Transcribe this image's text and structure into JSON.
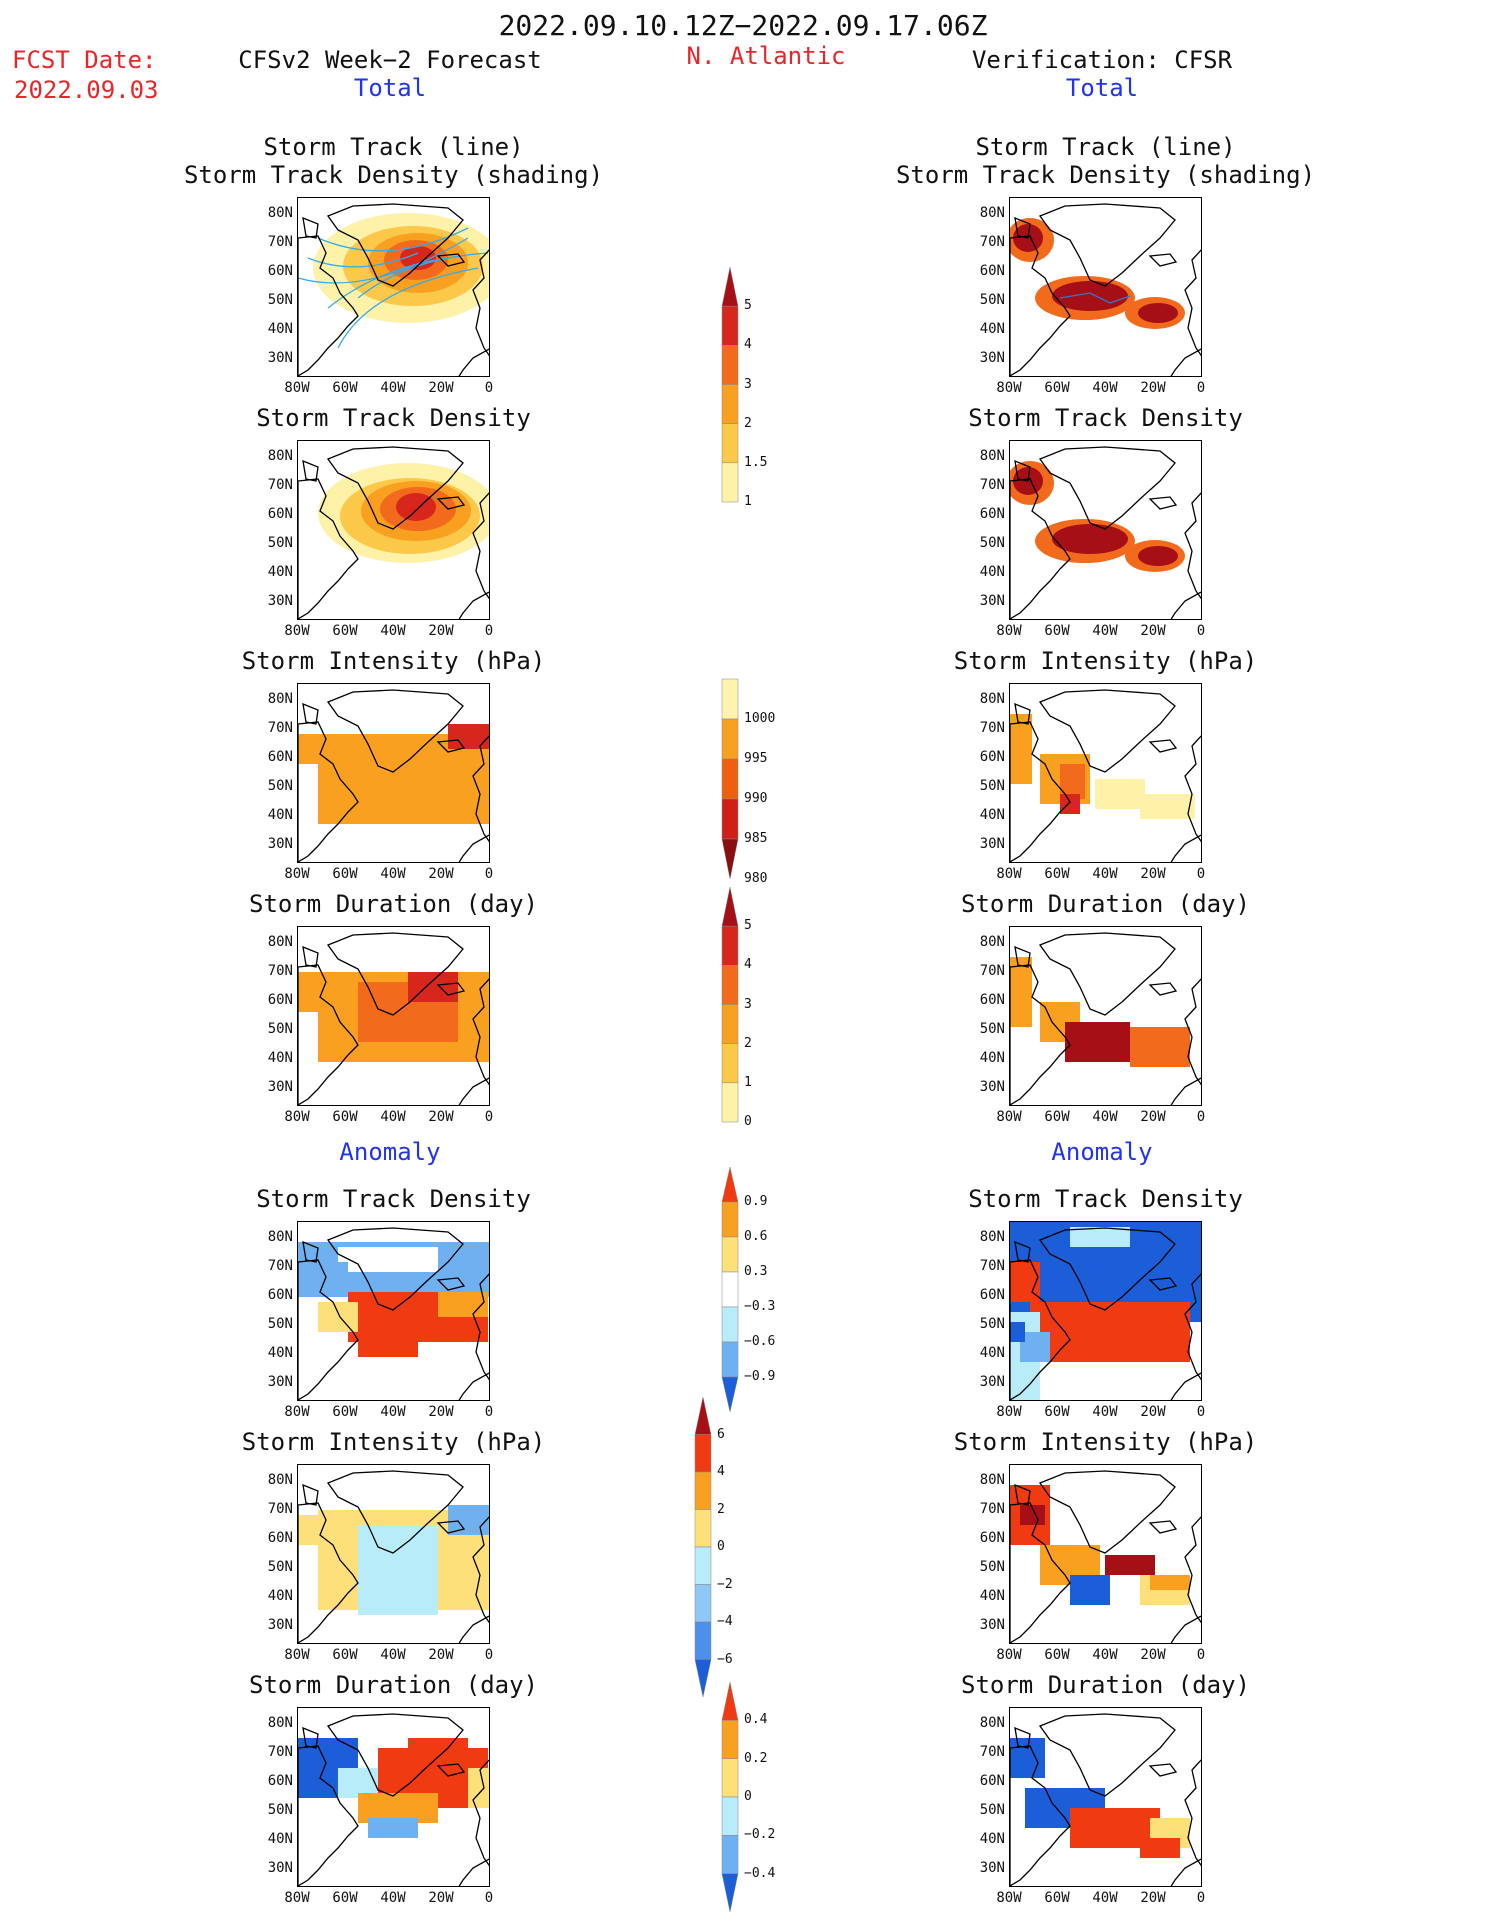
{
  "header": {
    "date_range": "2022.09.10.12Z−2022.09.17.06Z",
    "fcst_label": "FCST Date:",
    "fcst_date": "2022.09.03",
    "left_title": "CFSv2 Week−2 Forecast",
    "left_sub": "Total",
    "region": "N. Atlantic",
    "right_title": "Verification: CFSR",
    "right_sub": "Total"
  },
  "section_labels": {
    "anomaly_left": "Anomaly",
    "anomaly_right": "Anomaly"
  },
  "panel_titles": {
    "track_line": "Storm Track (line)",
    "track_density_shading": "Storm Track Density (shading)",
    "track_density": "Storm Track Density",
    "intensity": "Storm Intensity (hPa)",
    "duration": "Storm Duration (day)"
  },
  "axis": {
    "lat_ticks": [
      "80N",
      "70N",
      "60N",
      "50N",
      "40N",
      "30N"
    ],
    "lon_ticks": [
      "80W",
      "60W",
      "40W",
      "20W",
      "0"
    ]
  },
  "colorbars": {
    "density": {
      "labels": [
        "5",
        "4",
        "3",
        "2",
        "1.5",
        "1"
      ],
      "colors": [
        "#a50f15",
        "#d7261c",
        "#f26a1c",
        "#f9a020",
        "#fcc84a",
        "#fef1a8"
      ]
    },
    "intensity": {
      "labels": [
        "1000",
        "995",
        "990",
        "985",
        "980"
      ],
      "colors": [
        "#fff3b0",
        "#f9a020",
        "#ef5f10",
        "#d01e18",
        "#8a0e0e"
      ]
    },
    "duration": {
      "labels": [
        "5",
        "4",
        "3",
        "2",
        "1",
        "0"
      ],
      "colors": [
        "#a50f15",
        "#d7261c",
        "#f26a1c",
        "#f9a020",
        "#fcc84a",
        "#fef1a8"
      ]
    },
    "anom_density": {
      "labels": [
        "0.9",
        "0.6",
        "0.3",
        "−0.3",
        "−0.6",
        "−0.9"
      ],
      "colors": [
        "#f03a12",
        "#f9a020",
        "#fde07a",
        "#ffffff",
        "#b8ecf8",
        "#6fb0f0",
        "#1b5ed8"
      ]
    },
    "anom_intensity": {
      "labels": [
        "6",
        "4",
        "2",
        "0",
        "−2",
        "−4",
        "−6"
      ],
      "colors": [
        "#a50f15",
        "#f03a12",
        "#f9a020",
        "#fde07a",
        "#b8ecf8",
        "#8fc8f6",
        "#4d90ea",
        "#1b5ed8"
      ]
    },
    "anom_duration": {
      "labels": [
        "0.4",
        "0.2",
        "0",
        "−0.2",
        "−0.4"
      ],
      "colors": [
        "#f03a12",
        "#f9a020",
        "#fde07a",
        "#b8ecf8",
        "#6fb0f0",
        "#1b5ed8"
      ]
    }
  }
}
